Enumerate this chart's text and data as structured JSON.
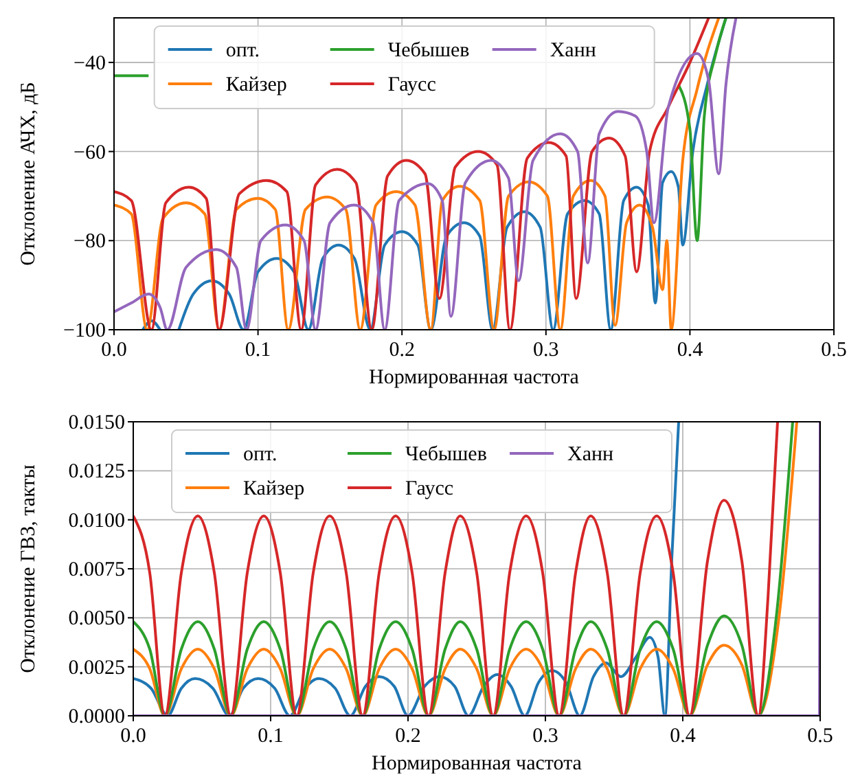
{
  "chart_data": [
    {
      "type": "line",
      "xlabel": "Нормированная частота",
      "ylabel": "Отклонение АЧХ, дБ",
      "xlim": [
        0,
        0.5
      ],
      "ylim": [
        -100,
        -30
      ],
      "xticks": [
        {
          "value": 0,
          "label": "0.0"
        },
        {
          "value": 0.1,
          "label": "0.1"
        },
        {
          "value": 0.2,
          "label": "0.2"
        },
        {
          "value": 0.3,
          "label": "0.3"
        },
        {
          "value": 0.4,
          "label": "0.4"
        },
        {
          "value": 0.5,
          "label": "0.5"
        }
      ],
      "yticks": [
        {
          "value": -100,
          "label": "−100"
        },
        {
          "value": -80,
          "label": "−80"
        },
        {
          "value": -60,
          "label": "−60"
        },
        {
          "value": -40,
          "label": "−40"
        }
      ],
      "grid": true,
      "legend": "top",
      "marker": "none",
      "line_style": "solid",
      "series": [
        {
          "name": "опт.",
          "color": "#1f77b4",
          "x": [
            0.02,
            0.026,
            0.032,
            0.038,
            0.045,
            0.055,
            0.068,
            0.08,
            0.09,
            0.1,
            0.113,
            0.125,
            0.135,
            0.145,
            0.156,
            0.167,
            0.178,
            0.188,
            0.2,
            0.211,
            0.22,
            0.231,
            0.243,
            0.254,
            0.263,
            0.273,
            0.285,
            0.296,
            0.305,
            0.315,
            0.327,
            0.337,
            0.345,
            0.354,
            0.363,
            0.371,
            0.376,
            0.381,
            0.387,
            0.392,
            0.395,
            0.402,
            0.412,
            0.425
          ],
          "values": [
            -100,
            -98,
            -100,
            null,
            -100,
            -92,
            -89,
            -92,
            -100,
            -87,
            -84,
            -87,
            -100,
            -84,
            -81,
            -84,
            -100,
            -81,
            -78,
            -81,
            -100,
            -79,
            -76,
            -79,
            -100,
            -77,
            -73.5,
            -77,
            -100,
            -74,
            -71,
            -74,
            -100,
            -71,
            -68,
            -72,
            -94,
            -67,
            -64.5,
            -68,
            -81,
            -60,
            -45,
            -30
          ]
        },
        {
          "name": "Кайзер",
          "color": "#ff7f0e",
          "x": [
            0,
            0.012,
            0.023,
            0.034,
            0.05,
            0.063,
            0.073,
            0.085,
            0.1,
            0.112,
            0.121,
            0.133,
            0.148,
            0.161,
            0.171,
            0.182,
            0.196,
            0.209,
            0.22,
            0.228,
            0.24,
            0.254,
            0.264,
            0.274,
            0.288,
            0.301,
            0.31,
            0.319,
            0.331,
            0.341,
            0.348,
            0.356,
            0.365,
            0.374,
            0.381,
            0.384,
            0.387,
            0.395,
            0.405,
            0.42
          ],
          "values": [
            -72,
            -74,
            -100,
            -75,
            -71.5,
            -74,
            -100,
            -73,
            -70.5,
            -73,
            -100,
            -73,
            -70.2,
            -73,
            -100,
            -72,
            -69,
            -72,
            -100,
            -71,
            -67.8,
            -71,
            -100,
            -70,
            -66.8,
            -70,
            -100,
            -70,
            -66.5,
            -70,
            -99,
            -76,
            -72,
            -77,
            -91,
            -80,
            -100,
            -62,
            -46,
            -30
          ]
        },
        {
          "name": "Чебышев",
          "color": "#2ca02c",
          "x": [
            0,
            0.008,
            0.016,
            0.024,
            0.03,
            0.392,
            0.4,
            0.405,
            0.41,
            0.418,
            0.425
          ],
          "values": [
            -43,
            -43,
            -43,
            -43,
            null,
            -45,
            -55,
            -80,
            -52,
            -38,
            -30
          ]
        },
        {
          "name": "Гаусс",
          "color": "#d62728",
          "x": [
            0,
            0.012,
            0.026,
            0.036,
            0.052,
            0.064,
            0.073,
            0.087,
            0.106,
            0.12,
            0.13,
            0.14,
            0.155,
            0.168,
            0.179,
            0.19,
            0.203,
            0.216,
            0.226,
            0.237,
            0.253,
            0.266,
            0.275,
            0.287,
            0.302,
            0.314,
            0.321,
            0.332,
            0.344,
            0.355,
            0.363,
            0.372,
            0.385,
            0.4,
            0.413
          ],
          "values": [
            -69,
            -71,
            -100,
            -71.5,
            -68,
            -70.5,
            -100,
            -69.5,
            -66.5,
            -69,
            -100,
            -67.5,
            -64,
            -67,
            -100,
            -65.5,
            -62,
            -65,
            -93,
            -63.5,
            -60,
            -63,
            -100,
            -61.5,
            -58,
            -61,
            -93,
            -60,
            -57,
            -61,
            -87,
            -60,
            -50,
            -40,
            -30
          ]
        },
        {
          "name": "Ханн",
          "color": "#9467bd",
          "x": [
            0,
            0.012,
            0.024,
            0.032,
            0.037,
            0.05,
            0.071,
            0.085,
            0.092,
            0.102,
            0.119,
            0.132,
            0.14,
            0.15,
            0.167,
            0.18,
            0.188,
            0.198,
            0.218,
            0.228,
            0.234,
            0.244,
            0.262,
            0.274,
            0.281,
            0.291,
            0.31,
            0.322,
            0.329,
            0.337,
            0.35,
            0.362,
            0.37,
            0.375,
            0.385,
            0.405,
            0.413,
            0.42,
            0.425,
            0.432
          ],
          "values": [
            -96,
            -94,
            -92,
            -95,
            -100,
            -86,
            -82,
            -86,
            -100,
            -80,
            -76.5,
            -80,
            -100,
            -76,
            -72,
            -76,
            -100,
            -71,
            -67.2,
            -71,
            -97,
            -67,
            -62,
            -66,
            -89,
            -62,
            -56,
            -60,
            -85,
            -56,
            -51,
            -52,
            -60,
            -76,
            -50,
            -38,
            -44,
            -65,
            -45,
            -30
          ]
        }
      ]
    },
    {
      "type": "line",
      "xlabel": "Нормированная частота",
      "ylabel": "Отклонение ГВЗ, такты",
      "xlim": [
        0,
        0.5
      ],
      "ylim": [
        0,
        0.015
      ],
      "xticks": [
        {
          "value": 0,
          "label": "0.0"
        },
        {
          "value": 0.1,
          "label": "0.1"
        },
        {
          "value": 0.2,
          "label": "0.2"
        },
        {
          "value": 0.3,
          "label": "0.3"
        },
        {
          "value": 0.4,
          "label": "0.4"
        },
        {
          "value": 0.5,
          "label": "0.5"
        }
      ],
      "yticks": [
        {
          "value": 0,
          "label": "0.0000"
        },
        {
          "value": 0.0025,
          "label": "0.0025"
        },
        {
          "value": 0.005,
          "label": "0.0050"
        },
        {
          "value": 0.0075,
          "label": "0.0075"
        },
        {
          "value": 0.01,
          "label": "0.0100"
        },
        {
          "value": 0.0125,
          "label": "0.0125"
        },
        {
          "value": 0.015,
          "label": "0.0150"
        }
      ],
      "grid": true,
      "legend": "top",
      "marker": "none",
      "line_style": "solid",
      "series": [
        {
          "name": "опт.",
          "color": "#1f77b4",
          "x": [
            0,
            0.013,
            0.025,
            0.035,
            0.045,
            0.058,
            0.07,
            0.08,
            0.091,
            0.103,
            0.114,
            0.125,
            0.135,
            0.147,
            0.158,
            0.169,
            0.179,
            0.19,
            0.2,
            0.212,
            0.223,
            0.234,
            0.244,
            0.255,
            0.265,
            0.275,
            0.285,
            0.295,
            0.305,
            0.315,
            0.325,
            0.335,
            0.344,
            0.355,
            0.366,
            0.376,
            0.382,
            0.387,
            0.392,
            0.397
          ],
          "values": [
            0.0019,
            0.0014,
            0,
            0.0014,
            0.0019,
            0.0014,
            0,
            0.0014,
            0.0019,
            0.0014,
            0,
            0.0014,
            0.0019,
            0.0014,
            0,
            0.0015,
            0.002,
            0.0015,
            0,
            0.0015,
            0.002,
            0.0015,
            0,
            0.0015,
            0.0021,
            0.0015,
            0,
            0.0017,
            0.0023,
            0.0017,
            0,
            0.002,
            0.0027,
            0.002,
            0.003,
            0.004,
            0.003,
            0,
            0.008,
            0.015
          ]
        },
        {
          "name": "Кайзер",
          "color": "#ff7f0e",
          "x": [
            0,
            0.012,
            0.023,
            0.035,
            0.047,
            0.059,
            0.071,
            0.083,
            0.095,
            0.107,
            0.119,
            0.131,
            0.143,
            0.155,
            0.167,
            0.179,
            0.191,
            0.203,
            0.215,
            0.227,
            0.238,
            0.25,
            0.262,
            0.274,
            0.286,
            0.298,
            0.31,
            0.322,
            0.333,
            0.345,
            0.357,
            0.369,
            0.381,
            0.393,
            0.405,
            0.418,
            0.43,
            0.443,
            0.455,
            0.47,
            0.483
          ],
          "values": [
            0.0034,
            0.0024,
            0,
            0.0024,
            0.0034,
            0.0024,
            0,
            0.0024,
            0.0034,
            0.0024,
            0,
            0.0024,
            0.0034,
            0.0024,
            0,
            0.0024,
            0.0034,
            0.0024,
            0,
            0.0024,
            0.0034,
            0.0024,
            0,
            0.0024,
            0.0034,
            0.0024,
            0,
            0.0024,
            0.0034,
            0.0024,
            0,
            0.0024,
            0.0034,
            0.0024,
            0,
            0.0026,
            0.0036,
            0.0026,
            0,
            0.005,
            0.015
          ]
        },
        {
          "name": "Чебышев",
          "color": "#2ca02c",
          "x": [
            0,
            0.012,
            0.023,
            0.035,
            0.047,
            0.059,
            0.071,
            0.083,
            0.095,
            0.107,
            0.119,
            0.131,
            0.143,
            0.155,
            0.167,
            0.179,
            0.191,
            0.203,
            0.215,
            0.227,
            0.238,
            0.25,
            0.262,
            0.274,
            0.286,
            0.298,
            0.31,
            0.322,
            0.333,
            0.345,
            0.357,
            0.369,
            0.381,
            0.393,
            0.405,
            0.418,
            0.43,
            0.443,
            0.455,
            0.468,
            0.48
          ],
          "values": [
            0.0048,
            0.0034,
            0,
            0.0034,
            0.0048,
            0.0034,
            0,
            0.0034,
            0.0048,
            0.0034,
            0,
            0.0034,
            0.0048,
            0.0034,
            0,
            0.0034,
            0.0048,
            0.0034,
            0,
            0.0034,
            0.0048,
            0.0034,
            0,
            0.0034,
            0.0048,
            0.0034,
            0,
            0.0034,
            0.0048,
            0.0034,
            0,
            0.0034,
            0.0048,
            0.0034,
            0,
            0.0036,
            0.0051,
            0.0036,
            0,
            0.005,
            0.015
          ]
        },
        {
          "name": "Гаусс",
          "color": "#d62728",
          "x": [
            0,
            0.012,
            0.023,
            0.035,
            0.047,
            0.059,
            0.071,
            0.083,
            0.095,
            0.107,
            0.119,
            0.131,
            0.143,
            0.155,
            0.167,
            0.179,
            0.191,
            0.203,
            0.215,
            0.227,
            0.238,
            0.25,
            0.262,
            0.274,
            0.286,
            0.298,
            0.31,
            0.322,
            0.333,
            0.345,
            0.357,
            0.369,
            0.381,
            0.393,
            0.405,
            0.418,
            0.43,
            0.443,
            0.455,
            0.462,
            0.469
          ],
          "values": [
            0.0102,
            0.0073,
            0,
            0.0073,
            0.0102,
            0.0073,
            0,
            0.0073,
            0.0102,
            0.0073,
            0,
            0.0073,
            0.0102,
            0.0073,
            0,
            0.0073,
            0.0102,
            0.0073,
            0,
            0.0073,
            0.0102,
            0.0073,
            0,
            0.0073,
            0.0102,
            0.0073,
            0,
            0.0073,
            0.0102,
            0.0073,
            0,
            0.0073,
            0.0102,
            0.0073,
            0,
            0.0079,
            0.011,
            0.0079,
            0,
            0.006,
            0.015
          ]
        },
        {
          "name": "Ханн",
          "color": "#9467bd",
          "x": [
            0,
            0.4995,
            0.5
          ],
          "values": [
            0,
            0,
            0.015
          ]
        }
      ]
    }
  ]
}
